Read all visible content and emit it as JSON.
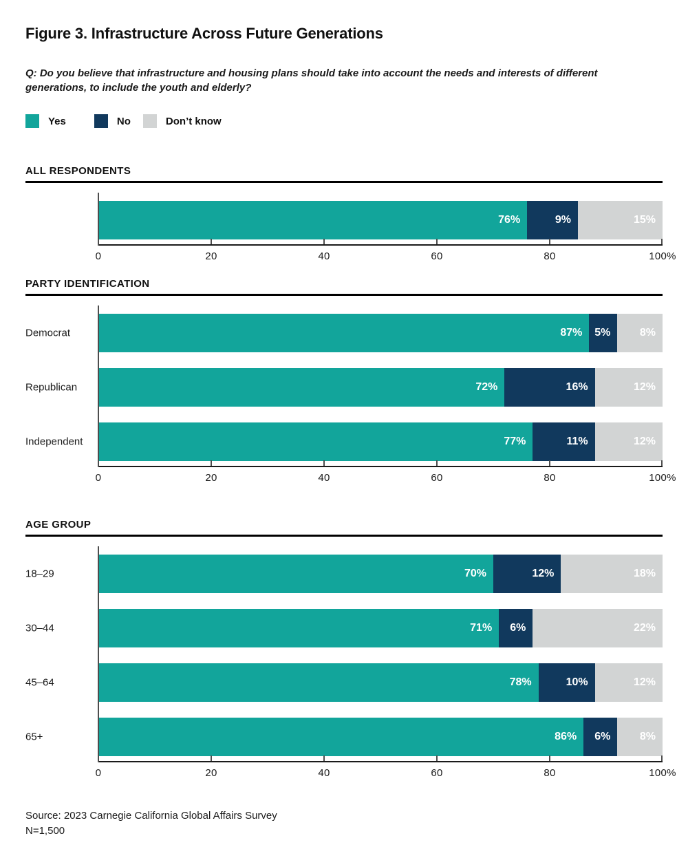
{
  "figure": {
    "title": "Figure 3. Infrastructure Across Future Generations",
    "question": "Q: Do you believe that infrastructure and housing plans should take into account the needs and interests of different generations, to include the youth and elderly?",
    "source_line1": "Source: 2023 Carnegie California Global Affairs Survey",
    "source_line2": "N=1,500"
  },
  "colors": {
    "yes": "#12a59b",
    "no": "#11395d",
    "dont_know": "#d2d4d4",
    "axis_line": "#1a1a1a",
    "tick": "#4d4d4d",
    "rule": "#000000",
    "text": "#1a1a1a",
    "bar_label": "#ffffff"
  },
  "legend": [
    {
      "label": "Yes",
      "color": "#12a59b"
    },
    {
      "label": "No",
      "color": "#11395d"
    },
    {
      "label": "Don’t know",
      "color": "#d2d4d4"
    }
  ],
  "chart_data": [
    {
      "type": "bar",
      "orientation": "horizontal",
      "stacked": true,
      "title": "ALL RESPONDENTS",
      "categories": [
        ""
      ],
      "series": [
        {
          "name": "Yes",
          "values": [
            76
          ]
        },
        {
          "name": "No",
          "values": [
            9
          ]
        },
        {
          "name": "Don’t know",
          "values": [
            15
          ]
        }
      ],
      "xlim": [
        0,
        100
      ],
      "x_ticks": [
        "0",
        "20",
        "40",
        "60",
        "80",
        "100%"
      ],
      "grid": false,
      "value_label_format": "{v}%"
    },
    {
      "type": "bar",
      "orientation": "horizontal",
      "stacked": true,
      "title": "PARTY IDENTIFICATION",
      "categories": [
        "Democrat",
        "Republican",
        "Independent"
      ],
      "series": [
        {
          "name": "Yes",
          "values": [
            87,
            72,
            77
          ]
        },
        {
          "name": "No",
          "values": [
            5,
            16,
            11
          ]
        },
        {
          "name": "Don’t know",
          "values": [
            8,
            12,
            12
          ]
        }
      ],
      "xlim": [
        0,
        100
      ],
      "x_ticks": [
        "0",
        "20",
        "40",
        "60",
        "80",
        "100%"
      ],
      "grid": false,
      "value_label_format": "{v}%"
    },
    {
      "type": "bar",
      "orientation": "horizontal",
      "stacked": true,
      "title": "AGE GROUP",
      "categories": [
        "18–29",
        "30–44",
        "45–64",
        "65+"
      ],
      "series": [
        {
          "name": "Yes",
          "values": [
            70,
            71,
            78,
            86
          ]
        },
        {
          "name": "No",
          "values": [
            12,
            6,
            10,
            6
          ]
        },
        {
          "name": "Don’t know",
          "values": [
            18,
            22,
            12,
            8
          ]
        }
      ],
      "xlim": [
        0,
        100
      ],
      "x_ticks": [
        "0",
        "20",
        "40",
        "60",
        "80",
        "100%"
      ],
      "grid": false,
      "value_label_format": "{v}%"
    }
  ]
}
